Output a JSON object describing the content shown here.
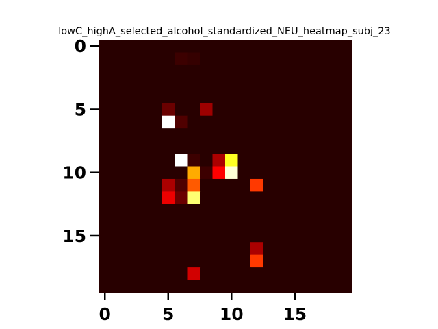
{
  "chart_data": {
    "type": "heatmap",
    "title": "lowC_highA_selected_alcohol_standardized_NEU_heatmap_subj_23",
    "xlabel": "",
    "ylabel": "",
    "rows": 20,
    "cols": 20,
    "colormap": "hot",
    "vmin": 0,
    "vmax": 1,
    "xticks": [
      0,
      5,
      10,
      15
    ],
    "yticks": [
      0,
      5,
      10,
      15
    ],
    "grid": false,
    "background_value": 0.02,
    "cells": [
      {
        "row": 1,
        "col": 6,
        "value": 0.05
      },
      {
        "row": 1,
        "col": 7,
        "value": 0.04
      },
      {
        "row": 5,
        "col": 5,
        "value": 0.12
      },
      {
        "row": 5,
        "col": 8,
        "value": 0.2
      },
      {
        "row": 6,
        "col": 5,
        "value": 1.0
      },
      {
        "row": 6,
        "col": 6,
        "value": 0.08
      },
      {
        "row": 9,
        "col": 6,
        "value": 1.0
      },
      {
        "row": 9,
        "col": 7,
        "value": 0.05
      },
      {
        "row": 9,
        "col": 9,
        "value": 0.22
      },
      {
        "row": 9,
        "col": 10,
        "value": 0.78
      },
      {
        "row": 10,
        "col": 7,
        "value": 0.62
      },
      {
        "row": 10,
        "col": 8,
        "value": 0.05
      },
      {
        "row": 10,
        "col": 9,
        "value": 0.35
      },
      {
        "row": 10,
        "col": 10,
        "value": 0.96
      },
      {
        "row": 11,
        "col": 5,
        "value": 0.22
      },
      {
        "row": 11,
        "col": 6,
        "value": 0.08
      },
      {
        "row": 11,
        "col": 7,
        "value": 0.5
      },
      {
        "row": 11,
        "col": 12,
        "value": 0.45
      },
      {
        "row": 12,
        "col": 5,
        "value": 0.32
      },
      {
        "row": 12,
        "col": 6,
        "value": 0.12
      },
      {
        "row": 12,
        "col": 7,
        "value": 0.86
      },
      {
        "row": 16,
        "col": 12,
        "value": 0.22
      },
      {
        "row": 17,
        "col": 12,
        "value": 0.45
      },
      {
        "row": 18,
        "col": 7,
        "value": 0.28
      }
    ]
  }
}
